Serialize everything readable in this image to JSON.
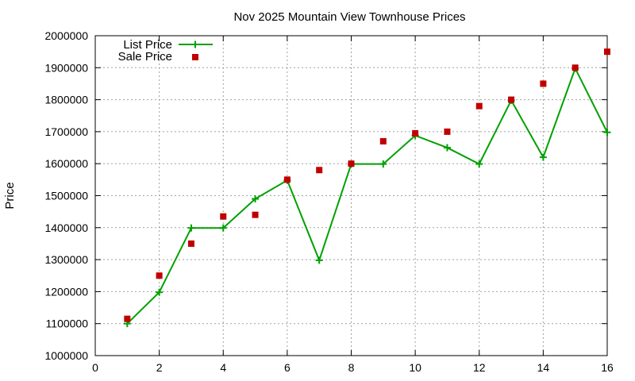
{
  "chart_data": {
    "type": "line",
    "title": "Nov 2025 Mountain View Townhouse Prices",
    "xlabel": "",
    "ylabel": "Price",
    "xlim": [
      0,
      16
    ],
    "ylim": [
      1000000,
      2000000
    ],
    "x_ticks": [
      0,
      2,
      4,
      6,
      8,
      10,
      12,
      14,
      16
    ],
    "y_ticks": [
      1000000,
      1100000,
      1200000,
      1300000,
      1400000,
      1500000,
      1600000,
      1700000,
      1800000,
      1900000,
      2000000
    ],
    "grid": true,
    "legend_position": "top-left",
    "series": [
      {
        "name": "List Price",
        "style": "linespoints",
        "marker": "plus",
        "color": "#00a000",
        "x": [
          1,
          2,
          3,
          4,
          5,
          6,
          7,
          8,
          9,
          10,
          11,
          12,
          13,
          14,
          15,
          16
        ],
        "y": [
          1100000,
          1198000,
          1399000,
          1399000,
          1490000,
          1548000,
          1298000,
          1599000,
          1599000,
          1688000,
          1650000,
          1599000,
          1798000,
          1620000,
          1898000,
          1698000
        ]
      },
      {
        "name": "Sale Price",
        "style": "points",
        "marker": "square",
        "color": "#c00000",
        "x": [
          1,
          2,
          3,
          4,
          5,
          6,
          7,
          8,
          9,
          10,
          11,
          12,
          13,
          14,
          15,
          16
        ],
        "y": [
          1115000,
          1250000,
          1350000,
          1435000,
          1440000,
          1550000,
          1580000,
          1600000,
          1670000,
          1695000,
          1700000,
          1780000,
          1800000,
          1850000,
          1900000,
          1950000
        ]
      }
    ]
  }
}
